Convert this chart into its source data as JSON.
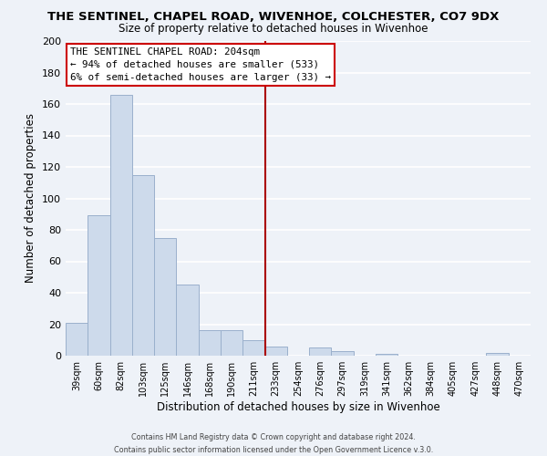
{
  "title": "THE SENTINEL, CHAPEL ROAD, WIVENHOE, COLCHESTER, CO7 9DX",
  "subtitle": "Size of property relative to detached houses in Wivenhoe",
  "xlabel": "Distribution of detached houses by size in Wivenhoe",
  "ylabel": "Number of detached properties",
  "bar_labels": [
    "39sqm",
    "60sqm",
    "82sqm",
    "103sqm",
    "125sqm",
    "146sqm",
    "168sqm",
    "190sqm",
    "211sqm",
    "233sqm",
    "254sqm",
    "276sqm",
    "297sqm",
    "319sqm",
    "341sqm",
    "362sqm",
    "384sqm",
    "405sqm",
    "427sqm",
    "448sqm",
    "470sqm"
  ],
  "bar_heights": [
    21,
    89,
    166,
    115,
    75,
    45,
    16,
    16,
    10,
    6,
    0,
    5,
    3,
    0,
    1,
    0,
    0,
    0,
    0,
    2,
    0
  ],
  "bar_color": "#cddaeb",
  "bar_edge_color": "#9ab0cc",
  "vline_x": 8.5,
  "vline_color": "#aa0000",
  "annotation_title": "THE SENTINEL CHAPEL ROAD: 204sqm",
  "annotation_line1": "← 94% of detached houses are smaller (533)",
  "annotation_line2": "6% of semi-detached houses are larger (33) →",
  "annotation_box_color": "#ffffff",
  "annotation_box_edge": "#cc0000",
  "ylim": [
    0,
    200
  ],
  "yticks": [
    0,
    20,
    40,
    60,
    80,
    100,
    120,
    140,
    160,
    180,
    200
  ],
  "footer1": "Contains HM Land Registry data © Crown copyright and database right 2024.",
  "footer2": "Contains public sector information licensed under the Open Government Licence v.3.0.",
  "background_color": "#eef2f8",
  "grid_color": "#ffffff"
}
